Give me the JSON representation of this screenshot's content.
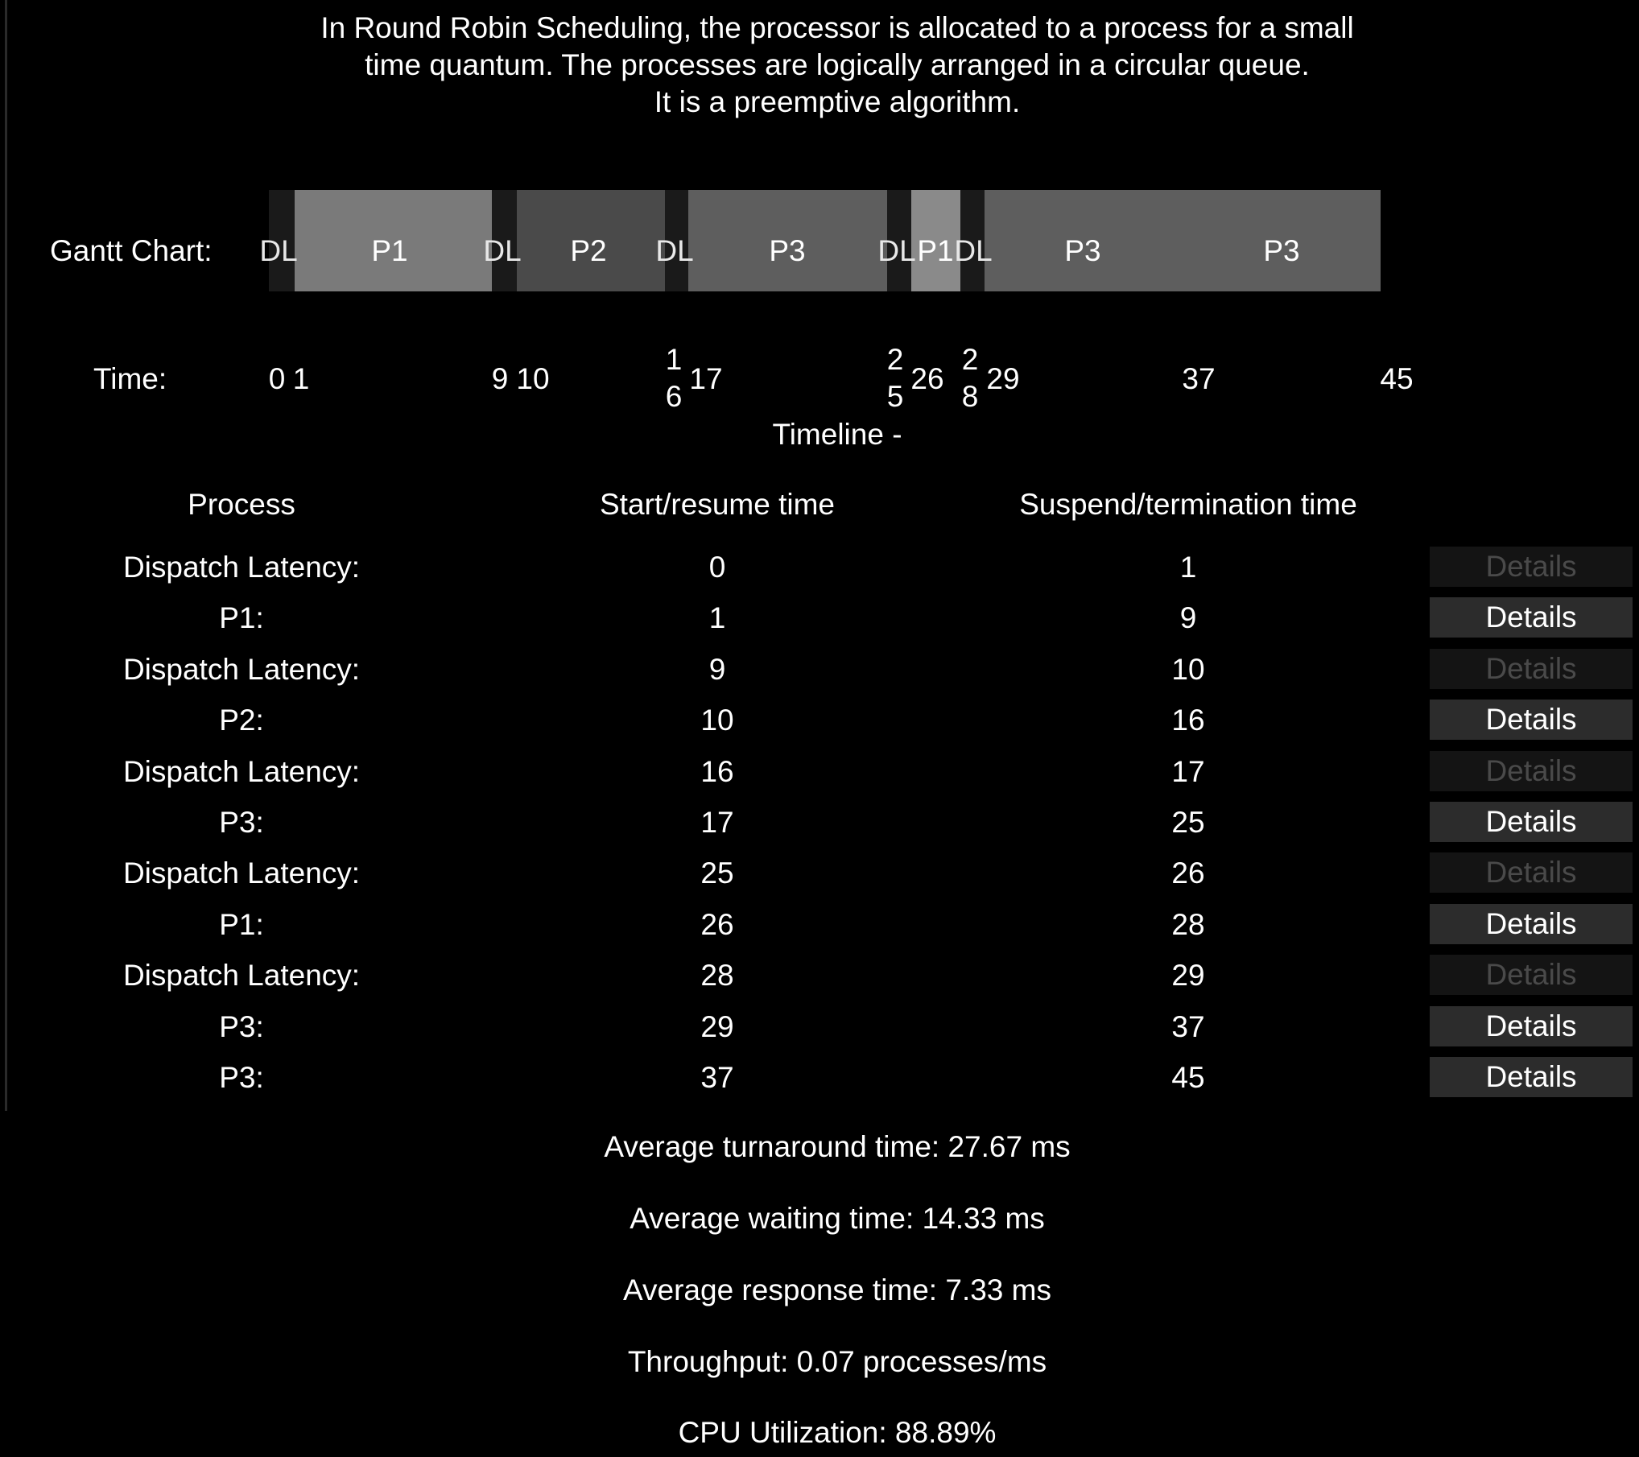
{
  "description": {
    "line1": "In Round Robin Scheduling, the processor is allocated to a process for a small",
    "line2": "time quantum. The processes are logically arranged in a circular queue.",
    "line3": "It is a preemptive algorithm."
  },
  "gantt": {
    "label": "Gantt Chart:",
    "segments": [
      {
        "label": "DL",
        "start": 0,
        "end": 1
      },
      {
        "label": "P1",
        "start": 1,
        "end": 9
      },
      {
        "label": "DL",
        "start": 9,
        "end": 10
      },
      {
        "label": "P2",
        "start": 10,
        "end": 16
      },
      {
        "label": "DL",
        "start": 16,
        "end": 17
      },
      {
        "label": "P3",
        "start": 17,
        "end": 25
      },
      {
        "label": "DL",
        "start": 25,
        "end": 26
      },
      {
        "label": "P1",
        "start": 26,
        "end": 28
      },
      {
        "label": "DL",
        "start": 28,
        "end": 29
      },
      {
        "label": "P3",
        "start": 29,
        "end": 37
      },
      {
        "label": "P3",
        "start": 37,
        "end": 45
      }
    ],
    "colors": {
      "DL": "#1a1a1a",
      "P1": "#7a7a7a",
      "P2": "#4a4a4a",
      "P3": "#5e5e5e",
      "P1_short": "#8a8a8a"
    }
  },
  "timeline": {
    "label": "Time:",
    "caption": "Timeline -",
    "ticks": [
      "0",
      "1",
      "9",
      "10",
      "16",
      "17",
      "25",
      "26",
      "28",
      "29",
      "37",
      "45"
    ]
  },
  "table": {
    "headers": {
      "process": "Process",
      "start": "Start/resume time",
      "end": "Suspend/termination time"
    },
    "details_label": "Details",
    "rows": [
      {
        "process": "Dispatch Latency:",
        "start": "0",
        "end": "1",
        "details_enabled": false
      },
      {
        "process": "P1:",
        "start": "1",
        "end": "9",
        "details_enabled": true
      },
      {
        "process": "Dispatch Latency:",
        "start": "9",
        "end": "10",
        "details_enabled": false
      },
      {
        "process": "P2:",
        "start": "10",
        "end": "16",
        "details_enabled": true
      },
      {
        "process": "Dispatch Latency:",
        "start": "16",
        "end": "17",
        "details_enabled": false
      },
      {
        "process": "P3:",
        "start": "17",
        "end": "25",
        "details_enabled": true
      },
      {
        "process": "Dispatch Latency:",
        "start": "25",
        "end": "26",
        "details_enabled": false
      },
      {
        "process": "P1:",
        "start": "26",
        "end": "28",
        "details_enabled": true
      },
      {
        "process": "Dispatch Latency:",
        "start": "28",
        "end": "29",
        "details_enabled": false
      },
      {
        "process": "P3:",
        "start": "29",
        "end": "37",
        "details_enabled": true
      },
      {
        "process": "P3:",
        "start": "37",
        "end": "45",
        "details_enabled": true
      }
    ]
  },
  "stats": {
    "turnaround": "Average turnaround time: 27.67 ms",
    "waiting": "Average waiting time: 14.33 ms",
    "response": "Average response time: 7.33 ms",
    "throughput": "Throughput: 0.07 processes/ms",
    "cpu": "CPU Utilization: 88.89%"
  }
}
